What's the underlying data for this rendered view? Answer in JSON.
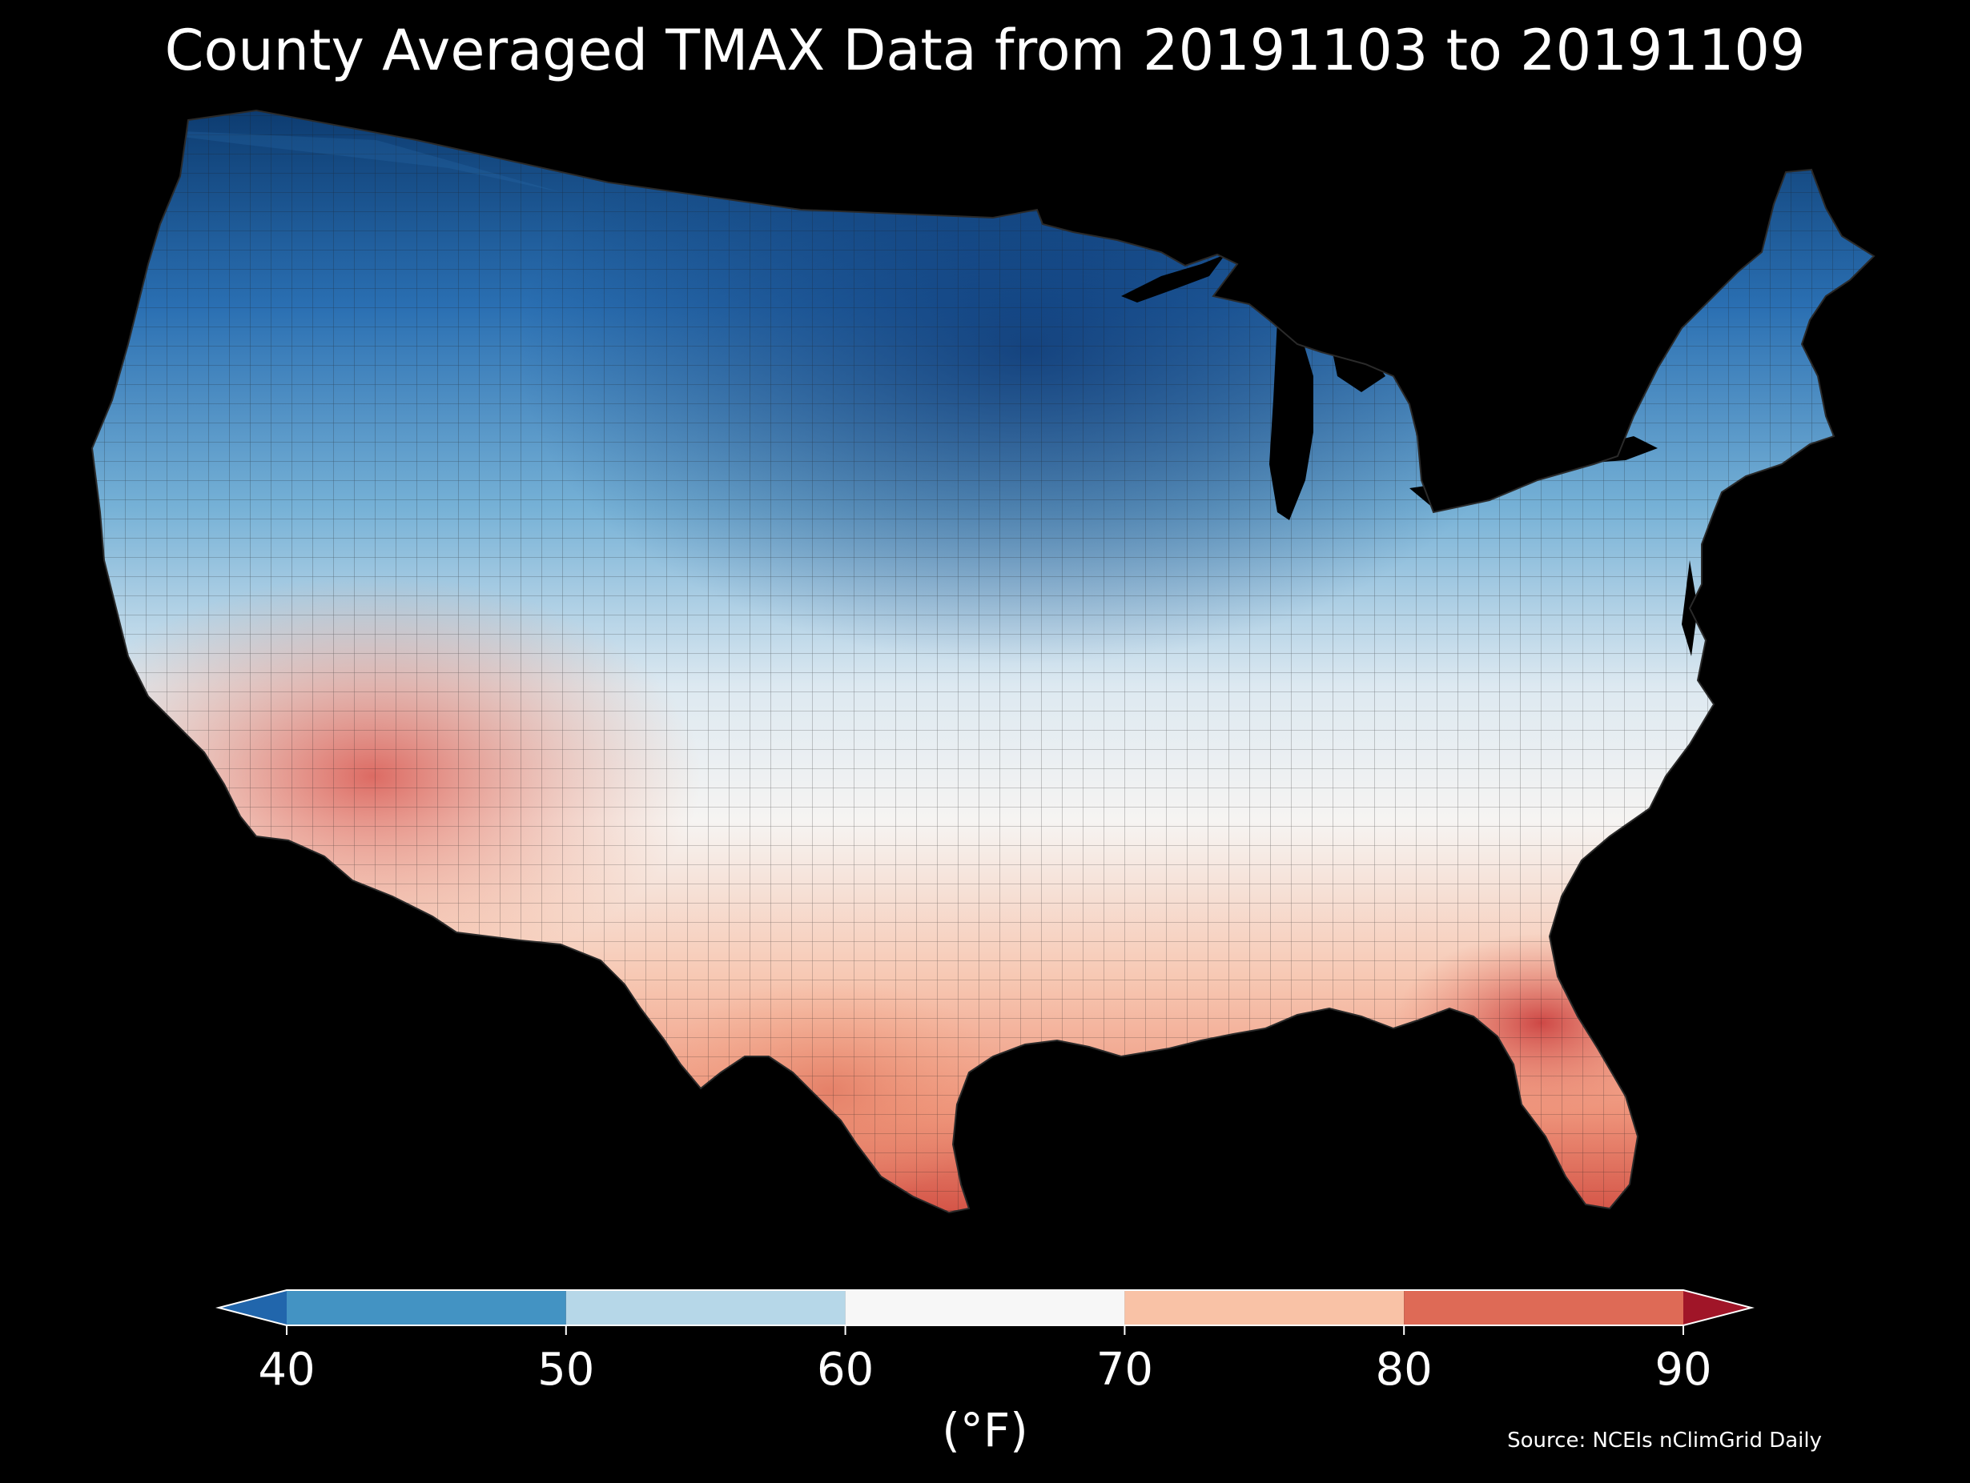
{
  "title": "County Averaged TMAX Data from 20191103 to 20191109",
  "map": {
    "region": "Contiguous United States",
    "subdivision": "county",
    "variable": "TMAX",
    "background": "#000000",
    "border_color": "#1a1a1a"
  },
  "colorbar": {
    "ticks": [
      "40",
      "50",
      "60",
      "70",
      "80",
      "90"
    ],
    "bins": [
      {
        "range": [
          40,
          50
        ],
        "color": "#4393c3"
      },
      {
        "range": [
          50,
          60
        ],
        "color": "#b6d7e8"
      },
      {
        "range": [
          60,
          70
        ],
        "color": "#f7f7f7"
      },
      {
        "range": [
          70,
          80
        ],
        "color": "#f9c2a6"
      },
      {
        "range": [
          80,
          90
        ],
        "color": "#de6a56"
      }
    ],
    "under_color": "#2166ac",
    "over_color": "#a01528",
    "extend": "both",
    "unit": "(°F)"
  },
  "source": "Source: NCEIs nClimGrid Daily"
}
